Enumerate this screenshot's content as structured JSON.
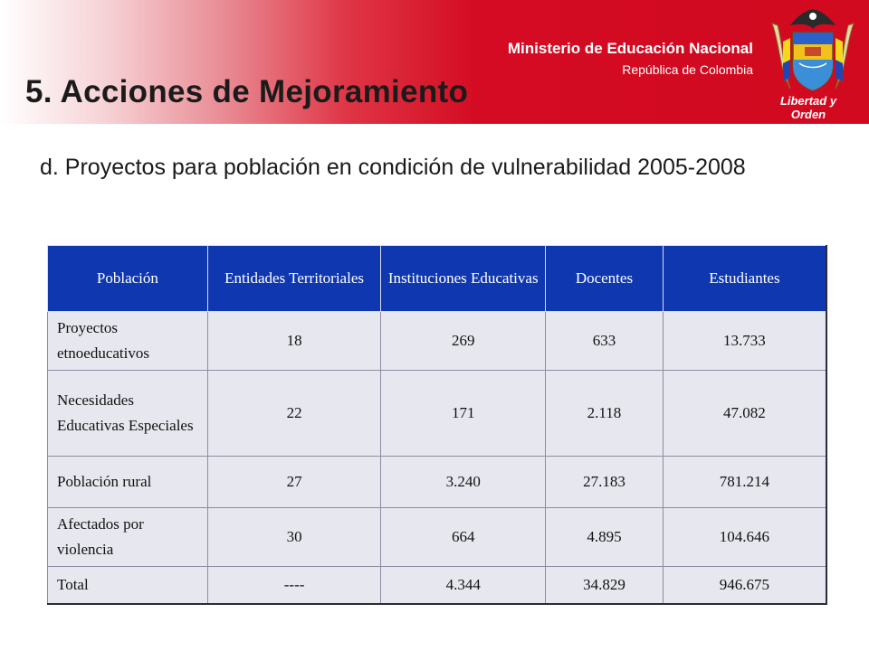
{
  "header": {
    "ministry_name": "Ministerio de Educación Nacional",
    "country": "República de Colombia",
    "motto": "Libertad y Orden",
    "logo_icon": "colombia-coat-of-arms-icon",
    "band_color": "#d10a20"
  },
  "title": "5. Acciones de Mejoramiento",
  "subtitle": "d. Proyectos para población en condición de vulnerabilidad 2005-2008",
  "table": {
    "header_color": "#0f38b0",
    "cell_color": "#e7e8ef",
    "columns": [
      "Población",
      "Entidades Territoriales",
      "Instituciones Educativas",
      "Docentes",
      "Estudiantes"
    ],
    "rows": [
      [
        "Proyectos etnoeducativos",
        "18",
        "269",
        "633",
        "13.733"
      ],
      [
        "Necesidades Educativas Especiales",
        "22",
        "171",
        "2.118",
        "47.082"
      ],
      [
        "Población rural",
        "27",
        "3.240",
        "27.183",
        "781.214"
      ],
      [
        "Afectados por violencia",
        "30",
        "664",
        "4.895",
        "104.646"
      ],
      [
        "Total",
        "----",
        "4.344",
        "34.829",
        "946.675"
      ]
    ]
  }
}
